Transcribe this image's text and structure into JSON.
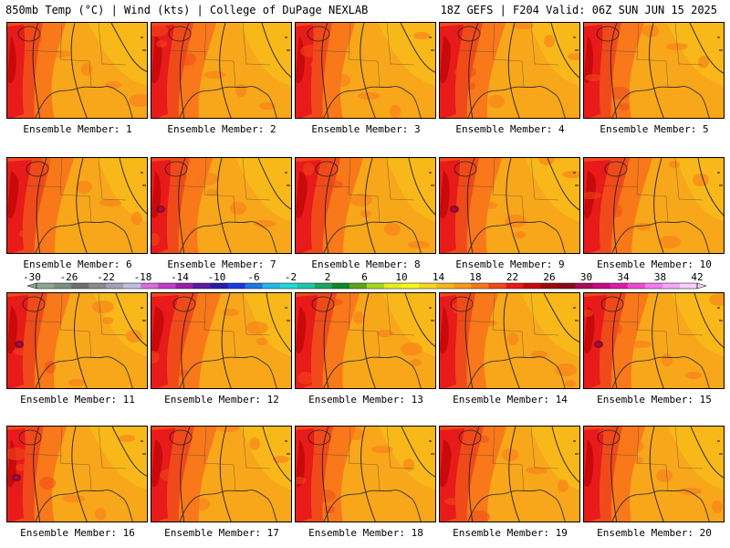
{
  "header": {
    "left": "850mb Temp (°C) | Wind (kts) | College of DuPage NEXLAB",
    "right": "18Z GEFS | F204 Valid: 06Z SUN JUN 15 2025"
  },
  "panels": [
    {
      "label": "Ensemble Member: 1"
    },
    {
      "label": "Ensemble Member: 2"
    },
    {
      "label": "Ensemble Member: 3"
    },
    {
      "label": "Ensemble Member: 4"
    },
    {
      "label": "Ensemble Member: 5"
    },
    {
      "label": "Ensemble Member: 6"
    },
    {
      "label": "Ensemble Member: 7"
    },
    {
      "label": "Ensemble Member: 8"
    },
    {
      "label": "Ensemble Member: 9"
    },
    {
      "label": "Ensemble Member: 10"
    },
    {
      "label": "Ensemble Member: 11"
    },
    {
      "label": "Ensemble Member: 12"
    },
    {
      "label": "Ensemble Member: 13"
    },
    {
      "label": "Ensemble Member: 14"
    },
    {
      "label": "Ensemble Member: 15"
    },
    {
      "label": "Ensemble Member: 16"
    },
    {
      "label": "Ensemble Member: 17"
    },
    {
      "label": "Ensemble Member: 18"
    },
    {
      "label": "Ensemble Member: 19"
    },
    {
      "label": "Ensemble Member: 20"
    }
  ],
  "colorbar": {
    "tick_labels": [
      "-30",
      "-26",
      "-22",
      "-18",
      "-14",
      "-10",
      "-6",
      "-2",
      "2",
      "6",
      "10",
      "14",
      "18",
      "22",
      "26",
      "30",
      "34",
      "38",
      "42"
    ],
    "colors": [
      "#8fa98f",
      "#7f8f7f",
      "#6f6f6f",
      "#8a8a8a",
      "#a3a3b8",
      "#bfbfdf",
      "#d46fd8",
      "#c23bcc",
      "#9b1ea8",
      "#5a1aa8",
      "#2a1aa8",
      "#1a3ae0",
      "#1a7ae0",
      "#22b8e8",
      "#22d8d8",
      "#1ac8a8",
      "#1aa860",
      "#0a8a2a",
      "#5aa81a",
      "#a8d81a",
      "#e8f01a",
      "#f8f81a",
      "#f8d81a",
      "#f8b81a",
      "#f89a1a",
      "#f8781a",
      "#f04a1a",
      "#e81a1a",
      "#c80a0a",
      "#a00a0a",
      "#880a1a",
      "#a80a5a",
      "#c80a8a",
      "#e01aaa",
      "#f04ad0",
      "#f87af0",
      "#f8a8f8",
      "#f8d0f8"
    ]
  }
}
